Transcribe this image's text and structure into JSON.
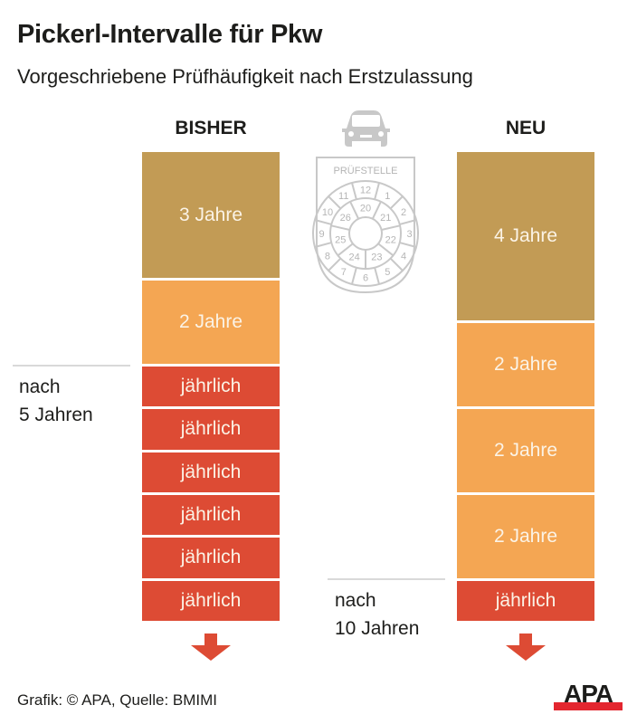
{
  "header": {
    "title": "Pickerl-Intervalle für Pkw",
    "subtitle": "Vorgeschriebene Prüfhäufigkeit nach Erstzulassung"
  },
  "columns": {
    "before": {
      "label": "BISHER",
      "segments": [
        {
          "label": "3 Jahre",
          "years": 3,
          "color": "#c29b55"
        },
        {
          "label": "2 Jahre",
          "years": 2,
          "color": "#f4a653"
        },
        {
          "label": "jährlich",
          "years": 1,
          "color": "#dd4b34"
        },
        {
          "label": "jährlich",
          "years": 1,
          "color": "#dd4b34"
        },
        {
          "label": "jährlich",
          "years": 1,
          "color": "#dd4b34"
        },
        {
          "label": "jährlich",
          "years": 1,
          "color": "#dd4b34"
        },
        {
          "label": "jährlich",
          "years": 1,
          "color": "#dd4b34"
        },
        {
          "label": "jährlich",
          "years": 1,
          "color": "#dd4b34"
        }
      ],
      "marker": {
        "line1": "nach",
        "line2": "5 Jahren"
      }
    },
    "new": {
      "label": "NEU",
      "segments": [
        {
          "label": "4 Jahre",
          "years": 4,
          "color": "#c29b55"
        },
        {
          "label": "2 Jahre",
          "years": 2,
          "color": "#f4a653"
        },
        {
          "label": "2 Jahre",
          "years": 2,
          "color": "#f4a653"
        },
        {
          "label": "2 Jahre",
          "years": 2,
          "color": "#f4a653"
        },
        {
          "label": "jährlich",
          "years": 1,
          "color": "#dd4b34"
        }
      ],
      "marker": {
        "line1": "nach",
        "line2": "10 Jahren"
      }
    }
  },
  "badge": {
    "icon": "car-icon",
    "title": "PRÜFSTELLE",
    "outer_ring": [
      "12",
      "1",
      "2",
      "3",
      "4",
      "5",
      "6",
      "7",
      "8",
      "9",
      "10",
      "11"
    ],
    "inner_ring": [
      "20",
      "21",
      "22",
      "23",
      "24",
      "25",
      "26"
    ]
  },
  "footer": {
    "credit": "Grafik: © APA, Quelle: BMIMI",
    "logo": "APA"
  },
  "colors": {
    "gold": "#c29b55",
    "orange": "#f4a653",
    "red": "#dd4b34",
    "badge_gray": "#c8c8c8"
  }
}
